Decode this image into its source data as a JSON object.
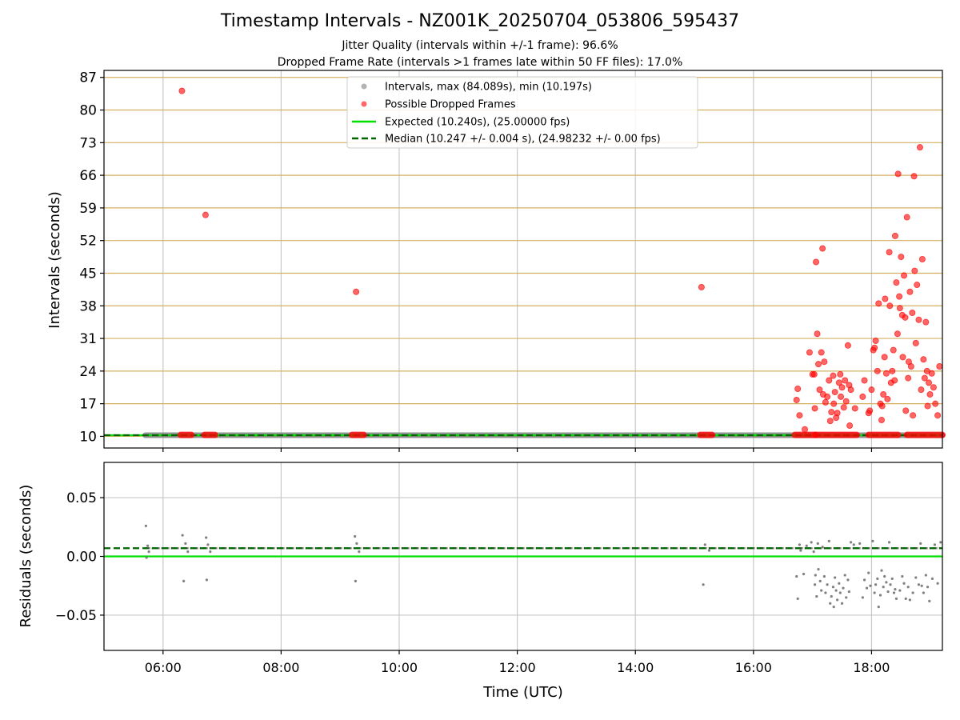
{
  "figure": {
    "title": "Timestamp Intervals - NZ001K_20250704_053806_595437",
    "subtitle_1": "Jitter Quality (intervals within +/-1 frame): 96.6%",
    "subtitle_2": "Dropped Frame Rate (intervals >1 frames late within 50 FF files): 17.0%",
    "xlabel": "Time (UTC)",
    "x_tick_labels": [
      "06:00",
      "08:00",
      "10:00",
      "12:00",
      "14:00",
      "16:00",
      "18:00"
    ]
  },
  "colors": {
    "intervals": "#808080",
    "dropped": "#ff0000",
    "expected": "#00e000",
    "median": "#006400",
    "y_grid_top": "#d4b060",
    "grid": "#c8c8c8"
  },
  "legend": {
    "intervals": "Intervals, max (84.089s), min (10.197s)",
    "dropped": "Possible Dropped Frames",
    "expected": "Expected (10.240s), (25.00000 fps)",
    "median": "Median (10.247 +/- 0.004 s), (24.98232 +/- 0.00 fps)"
  },
  "chart_data": [
    {
      "type": "scatter",
      "name": "intervals",
      "ylabel": "Intervals (seconds)",
      "x_unit": "hours UTC",
      "xlim": [
        5.0,
        19.2
      ],
      "ylim": [
        7.5,
        88.5
      ],
      "y_ticks": [
        10,
        17,
        24,
        31,
        38,
        45,
        52,
        59,
        66,
        73,
        80,
        87
      ],
      "grid": "on",
      "legend_position": "top-center",
      "expected_interval": 10.24,
      "median_interval": 10.247,
      "intervals_max": 84.089,
      "intervals_min": 10.197,
      "interval_baseline": {
        "x_start": 5.7,
        "x_end": 19.2,
        "y": 10.24
      },
      "dropped_clusters": [
        {
          "x_start": 6.3,
          "x_end": 6.48,
          "y": 10.3
        },
        {
          "x_start": 6.7,
          "x_end": 6.88,
          "y": 10.3
        },
        {
          "x_start": 9.2,
          "x_end": 9.4,
          "y": 10.3
        },
        {
          "x_start": 15.1,
          "x_end": 15.3,
          "y": 10.3
        },
        {
          "x_start": 16.7,
          "x_end": 17.05,
          "y": 10.3
        },
        {
          "x_start": 17.05,
          "x_end": 17.75,
          "y": 10.3
        },
        {
          "x_start": 17.95,
          "x_end": 18.45,
          "y": 10.3
        },
        {
          "x_start": 18.6,
          "x_end": 19.2,
          "y": 10.3
        }
      ],
      "dropped_frames": [
        [
          6.32,
          84.1
        ],
        [
          6.72,
          57.5
        ],
        [
          9.27,
          41.0
        ],
        [
          15.12,
          42.0
        ],
        [
          16.73,
          17.8
        ],
        [
          16.75,
          20.2
        ],
        [
          16.78,
          14.5
        ],
        [
          16.87,
          11.5
        ],
        [
          16.95,
          28.0
        ],
        [
          17.0,
          23.3
        ],
        [
          17.03,
          23.3
        ],
        [
          17.04,
          16.0
        ],
        [
          17.06,
          47.4
        ],
        [
          17.08,
          32.0
        ],
        [
          17.1,
          25.5
        ],
        [
          17.12,
          20.0
        ],
        [
          17.15,
          28.0
        ],
        [
          17.17,
          50.3
        ],
        [
          17.18,
          19.0
        ],
        [
          17.2,
          26.0
        ],
        [
          17.22,
          17.3
        ],
        [
          17.25,
          18.5
        ],
        [
          17.28,
          22.0
        ],
        [
          17.3,
          13.3
        ],
        [
          17.32,
          15.2
        ],
        [
          17.35,
          23.0
        ],
        [
          17.36,
          17.0
        ],
        [
          17.38,
          19.5
        ],
        [
          17.4,
          14.0
        ],
        [
          17.42,
          15.0
        ],
        [
          17.45,
          21.5
        ],
        [
          17.47,
          23.3
        ],
        [
          17.48,
          18.5
        ],
        [
          17.5,
          20.5
        ],
        [
          17.53,
          16.2
        ],
        [
          17.55,
          22.0
        ],
        [
          17.57,
          17.5
        ],
        [
          17.6,
          29.5
        ],
        [
          17.62,
          21.0
        ],
        [
          17.63,
          12.3
        ],
        [
          17.65,
          20.0
        ],
        [
          17.72,
          16.0
        ],
        [
          17.85,
          18.5
        ],
        [
          17.88,
          22.0
        ],
        [
          17.95,
          15.0
        ],
        [
          17.97,
          15.5
        ],
        [
          18.0,
          20.0
        ],
        [
          18.03,
          28.5
        ],
        [
          18.05,
          29.0
        ],
        [
          18.07,
          30.5
        ],
        [
          18.1,
          24.0
        ],
        [
          18.12,
          38.5
        ],
        [
          18.15,
          17.0
        ],
        [
          18.17,
          13.5
        ],
        [
          18.18,
          16.5
        ],
        [
          18.2,
          19.0
        ],
        [
          18.22,
          27.0
        ],
        [
          18.23,
          39.5
        ],
        [
          18.25,
          23.5
        ],
        [
          18.27,
          18.0
        ],
        [
          18.3,
          49.5
        ],
        [
          18.31,
          38.0
        ],
        [
          18.33,
          21.5
        ],
        [
          18.35,
          24.0
        ],
        [
          18.37,
          28.5
        ],
        [
          18.39,
          22.0
        ],
        [
          18.4,
          53.0
        ],
        [
          18.42,
          43.0
        ],
        [
          18.44,
          32.0
        ],
        [
          18.45,
          66.3
        ],
        [
          18.47,
          40.0
        ],
        [
          18.48,
          37.5
        ],
        [
          18.5,
          48.5
        ],
        [
          18.52,
          36.0
        ],
        [
          18.53,
          27.0
        ],
        [
          18.55,
          44.5
        ],
        [
          18.57,
          35.5
        ],
        [
          18.58,
          15.5
        ],
        [
          18.6,
          57.0
        ],
        [
          18.62,
          22.5
        ],
        [
          18.63,
          26.0
        ],
        [
          18.65,
          41.0
        ],
        [
          18.67,
          25.0
        ],
        [
          18.69,
          36.5
        ],
        [
          18.7,
          14.5
        ],
        [
          18.72,
          65.8
        ],
        [
          18.73,
          45.5
        ],
        [
          18.75,
          30.0
        ],
        [
          18.77,
          42.5
        ],
        [
          18.8,
          35.0
        ],
        [
          18.82,
          72.0
        ],
        [
          18.84,
          20.0
        ],
        [
          18.86,
          48.0
        ],
        [
          18.88,
          26.5
        ],
        [
          18.9,
          22.5
        ],
        [
          18.92,
          34.5
        ],
        [
          18.94,
          24.0
        ],
        [
          18.95,
          16.5
        ],
        [
          18.97,
          21.5
        ],
        [
          18.99,
          19.0
        ],
        [
          19.02,
          23.5
        ],
        [
          19.05,
          20.5
        ],
        [
          19.08,
          17.0
        ],
        [
          19.12,
          14.5
        ],
        [
          19.15,
          25.0
        ]
      ]
    },
    {
      "type": "scatter",
      "name": "residuals",
      "ylabel": "Residuals (seconds)",
      "xlim": [
        5.0,
        19.2
      ],
      "ylim": [
        -0.08,
        0.08
      ],
      "y_ticks": [
        0.05,
        0.0,
        -0.05
      ],
      "y_tick_labels": [
        "0.05",
        "0.00",
        "−0.05"
      ],
      "grid": "on",
      "expected_residual": 0.0,
      "median_residual": 0.007,
      "baseline": {
        "x_start": 5.7,
        "x_end": 19.2,
        "y": 0.007
      },
      "points": [
        [
          5.71,
          0.026
        ],
        [
          5.72,
          -0.001
        ],
        [
          5.74,
          0.009
        ],
        [
          5.76,
          0.004
        ],
        [
          6.33,
          0.018
        ],
        [
          6.35,
          -0.021
        ],
        [
          6.38,
          0.011
        ],
        [
          6.42,
          0.004
        ],
        [
          6.73,
          0.016
        ],
        [
          6.74,
          -0.02
        ],
        [
          6.76,
          0.01
        ],
        [
          6.8,
          0.004
        ],
        [
          9.25,
          0.017
        ],
        [
          9.26,
          -0.021
        ],
        [
          9.28,
          0.011
        ],
        [
          9.32,
          0.004
        ],
        [
          15.15,
          -0.024
        ],
        [
          15.18,
          0.01
        ],
        [
          15.25,
          0.005
        ],
        [
          16.73,
          -0.017
        ],
        [
          16.75,
          -0.036
        ],
        [
          16.78,
          0.01
        ],
        [
          16.8,
          0.005
        ],
        [
          16.85,
          -0.015
        ],
        [
          16.9,
          0.009
        ],
        [
          16.98,
          0.012
        ],
        [
          17.02,
          0.004
        ],
        [
          17.04,
          -0.024
        ],
        [
          17.05,
          -0.016
        ],
        [
          17.07,
          -0.034
        ],
        [
          17.09,
          0.011
        ],
        [
          17.1,
          -0.011
        ],
        [
          17.13,
          -0.021
        ],
        [
          17.15,
          -0.029
        ],
        [
          17.17,
          0.008
        ],
        [
          17.2,
          -0.017
        ],
        [
          17.22,
          -0.031
        ],
        [
          17.25,
          -0.024
        ],
        [
          17.28,
          0.013
        ],
        [
          17.3,
          -0.04
        ],
        [
          17.32,
          -0.034
        ],
        [
          17.35,
          -0.026
        ],
        [
          17.36,
          -0.043
        ],
        [
          17.38,
          -0.018
        ],
        [
          17.4,
          -0.029
        ],
        [
          17.42,
          -0.037
        ],
        [
          17.45,
          -0.023
        ],
        [
          17.47,
          -0.031
        ],
        [
          17.5,
          -0.04
        ],
        [
          17.52,
          -0.027
        ],
        [
          17.55,
          -0.016
        ],
        [
          17.57,
          -0.035
        ],
        [
          17.6,
          -0.02
        ],
        [
          17.62,
          -0.03
        ],
        [
          17.65,
          0.012
        ],
        [
          17.7,
          0.01
        ],
        [
          17.8,
          0.011
        ],
        [
          17.85,
          -0.035
        ],
        [
          17.88,
          -0.02
        ],
        [
          17.92,
          -0.027
        ],
        [
          17.95,
          -0.014
        ],
        [
          17.98,
          -0.025
        ],
        [
          18.02,
          0.013
        ],
        [
          18.05,
          -0.031
        ],
        [
          18.07,
          -0.024
        ],
        [
          18.1,
          -0.019
        ],
        [
          18.12,
          -0.043
        ],
        [
          18.15,
          -0.033
        ],
        [
          18.17,
          -0.012
        ],
        [
          18.2,
          -0.026
        ],
        [
          18.22,
          -0.017
        ],
        [
          18.25,
          -0.022
        ],
        [
          18.28,
          -0.03
        ],
        [
          18.3,
          0.012
        ],
        [
          18.32,
          -0.024
        ],
        [
          18.35,
          -0.019
        ],
        [
          18.38,
          -0.031
        ],
        [
          18.4,
          -0.028
        ],
        [
          18.42,
          -0.036
        ],
        [
          18.48,
          -0.029
        ],
        [
          18.52,
          -0.017
        ],
        [
          18.55,
          -0.023
        ],
        [
          18.58,
          -0.036
        ],
        [
          18.62,
          -0.026
        ],
        [
          18.65,
          -0.037
        ],
        [
          18.7,
          -0.031
        ],
        [
          18.75,
          -0.018
        ],
        [
          18.8,
          -0.024
        ],
        [
          18.83,
          0.011
        ],
        [
          18.85,
          -0.025
        ],
        [
          18.88,
          -0.031
        ],
        [
          18.92,
          -0.016
        ],
        [
          18.95,
          -0.026
        ],
        [
          18.98,
          -0.038
        ],
        [
          19.03,
          -0.019
        ],
        [
          19.07,
          0.01
        ],
        [
          19.12,
          -0.023
        ],
        [
          19.17,
          0.012
        ]
      ]
    }
  ]
}
